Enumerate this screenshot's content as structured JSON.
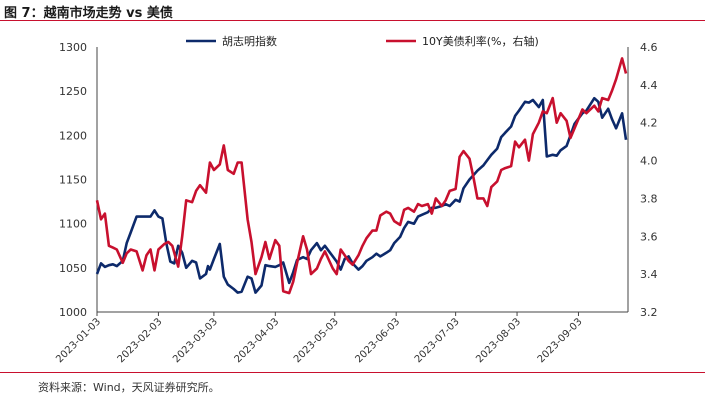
{
  "title": "图 7：越南市场走势 vs 美债",
  "source": "资料来源：Wind，天风证券研究所。",
  "colors": {
    "index": "#0d2a6b",
    "yield": "#c8102e",
    "accent": "#c8102e"
  },
  "chart_data": {
    "type": "line",
    "title": "",
    "xlabel": "",
    "ylabel": "",
    "y2label": "",
    "ylim": [
      1000,
      1300
    ],
    "y2lim": [
      3.2,
      4.6
    ],
    "y_ticks": [
      1000,
      1050,
      1100,
      1150,
      1200,
      1250,
      1300
    ],
    "y2_ticks": [
      "3.2",
      "3.4",
      "3.6",
      "3.8",
      "4.0",
      "4.2",
      "4.4",
      "4.6"
    ],
    "x_range": [
      "2023-01-03",
      "2023-09-28"
    ],
    "x_ticks": [
      "2023-01-03",
      "2023-02-03",
      "2023-03-03",
      "2023-04-03",
      "2023-05-03",
      "2023-06-03",
      "2023-07-03",
      "2023-08-03",
      "2023-09-03"
    ],
    "legend_position": "top",
    "grid": false,
    "series": [
      {
        "name": "胡志明指数",
        "axis": "left",
        "color": "#0d2a6b",
        "points": [
          [
            "2023-01-03",
            1043
          ],
          [
            "2023-01-05",
            1055
          ],
          [
            "2023-01-07",
            1051
          ],
          [
            "2023-01-09",
            1053
          ],
          [
            "2023-01-11",
            1054
          ],
          [
            "2023-01-13",
            1052
          ],
          [
            "2023-01-16",
            1058
          ],
          [
            "2023-01-18",
            1078
          ],
          [
            "2023-01-20",
            1090
          ],
          [
            "2023-01-23",
            1108
          ],
          [
            "2023-01-26",
            1108
          ],
          [
            "2023-01-30",
            1108
          ],
          [
            "2023-02-01",
            1115
          ],
          [
            "2023-02-03",
            1108
          ],
          [
            "2023-02-05",
            1106
          ],
          [
            "2023-02-07",
            1078
          ],
          [
            "2023-02-09",
            1057
          ],
          [
            "2023-02-11",
            1055
          ],
          [
            "2023-02-13",
            1075
          ],
          [
            "2023-02-15",
            1067
          ],
          [
            "2023-02-17",
            1050
          ],
          [
            "2023-02-20",
            1058
          ],
          [
            "2023-02-22",
            1056
          ],
          [
            "2023-02-24",
            1038
          ],
          [
            "2023-02-27",
            1043
          ],
          [
            "2023-02-28",
            1052
          ],
          [
            "2023-03-01",
            1048
          ],
          [
            "2023-03-03",
            1060
          ],
          [
            "2023-03-06",
            1077
          ],
          [
            "2023-03-08",
            1040
          ],
          [
            "2023-03-10",
            1031
          ],
          [
            "2023-03-13",
            1026
          ],
          [
            "2023-03-15",
            1022
          ],
          [
            "2023-03-17",
            1023
          ],
          [
            "2023-03-20",
            1040
          ],
          [
            "2023-03-22",
            1038
          ],
          [
            "2023-03-24",
            1022
          ],
          [
            "2023-03-27",
            1030
          ],
          [
            "2023-03-29",
            1053
          ],
          [
            "2023-03-31",
            1052
          ],
          [
            "2023-04-03",
            1051
          ],
          [
            "2023-04-05",
            1053
          ],
          [
            "2023-04-07",
            1056
          ],
          [
            "2023-04-10",
            1033
          ],
          [
            "2023-04-12",
            1045
          ],
          [
            "2023-04-14",
            1059
          ],
          [
            "2023-04-17",
            1062
          ],
          [
            "2023-04-19",
            1060
          ],
          [
            "2023-04-21",
            1070
          ],
          [
            "2023-04-24",
            1078
          ],
          [
            "2023-04-26",
            1070
          ],
          [
            "2023-04-28",
            1075
          ],
          [
            "2023-05-02",
            1063
          ],
          [
            "2023-05-04",
            1057
          ],
          [
            "2023-05-06",
            1048
          ],
          [
            "2023-05-08",
            1060
          ],
          [
            "2023-05-10",
            1063
          ],
          [
            "2023-05-12",
            1055
          ],
          [
            "2023-05-15",
            1048
          ],
          [
            "2023-05-17",
            1052
          ],
          [
            "2023-05-19",
            1058
          ],
          [
            "2023-05-22",
            1062
          ],
          [
            "2023-05-24",
            1066
          ],
          [
            "2023-05-26",
            1063
          ],
          [
            "2023-05-29",
            1067
          ],
          [
            "2023-05-31",
            1070
          ],
          [
            "2023-06-02",
            1078
          ],
          [
            "2023-06-05",
            1085
          ],
          [
            "2023-06-07",
            1095
          ],
          [
            "2023-06-09",
            1102
          ],
          [
            "2023-06-12",
            1100
          ],
          [
            "2023-06-14",
            1108
          ],
          [
            "2023-06-16",
            1110
          ],
          [
            "2023-06-19",
            1113
          ],
          [
            "2023-06-21",
            1118
          ],
          [
            "2023-06-23",
            1118
          ],
          [
            "2023-06-26",
            1120
          ],
          [
            "2023-06-28",
            1122
          ],
          [
            "2023-06-30",
            1120
          ],
          [
            "2023-07-03",
            1127
          ],
          [
            "2023-07-05",
            1125
          ],
          [
            "2023-07-07",
            1140
          ],
          [
            "2023-07-10",
            1150
          ],
          [
            "2023-07-12",
            1155
          ],
          [
            "2023-07-14",
            1160
          ],
          [
            "2023-07-17",
            1166
          ],
          [
            "2023-07-19",
            1172
          ],
          [
            "2023-07-21",
            1178
          ],
          [
            "2023-07-24",
            1185
          ],
          [
            "2023-07-26",
            1198
          ],
          [
            "2023-07-28",
            1203
          ],
          [
            "2023-07-31",
            1210
          ],
          [
            "2023-08-02",
            1222
          ],
          [
            "2023-08-04",
            1228
          ],
          [
            "2023-08-07",
            1238
          ],
          [
            "2023-08-09",
            1237
          ],
          [
            "2023-08-11",
            1240
          ],
          [
            "2023-08-14",
            1232
          ],
          [
            "2023-08-16",
            1240
          ],
          [
            "2023-08-18",
            1176
          ],
          [
            "2023-08-21",
            1178
          ],
          [
            "2023-08-23",
            1177
          ],
          [
            "2023-08-25",
            1183
          ],
          [
            "2023-08-28",
            1188
          ],
          [
            "2023-08-30",
            1200
          ],
          [
            "2023-09-01",
            1213
          ],
          [
            "2023-09-05",
            1225
          ],
          [
            "2023-09-07",
            1228
          ],
          [
            "2023-09-11",
            1242
          ],
          [
            "2023-09-13",
            1238
          ],
          [
            "2023-09-15",
            1220
          ],
          [
            "2023-09-18",
            1230
          ],
          [
            "2023-09-20",
            1218
          ],
          [
            "2023-09-22",
            1208
          ],
          [
            "2023-09-25",
            1225
          ],
          [
            "2023-09-27",
            1195
          ]
        ]
      },
      {
        "name": "10Y美债利率(%，右轴)",
        "axis": "right",
        "color": "#c8102e",
        "points": [
          [
            "2023-01-03",
            3.79
          ],
          [
            "2023-01-05",
            3.69
          ],
          [
            "2023-01-07",
            3.72
          ],
          [
            "2023-01-09",
            3.55
          ],
          [
            "2023-01-11",
            3.54
          ],
          [
            "2023-01-13",
            3.53
          ],
          [
            "2023-01-16",
            3.46
          ],
          [
            "2023-01-18",
            3.51
          ],
          [
            "2023-01-20",
            3.53
          ],
          [
            "2023-01-23",
            3.52
          ],
          [
            "2023-01-26",
            3.42
          ],
          [
            "2023-01-28",
            3.5
          ],
          [
            "2023-01-30",
            3.53
          ],
          [
            "2023-02-01",
            3.42
          ],
          [
            "2023-02-03",
            3.53
          ],
          [
            "2023-02-06",
            3.56
          ],
          [
            "2023-02-08",
            3.57
          ],
          [
            "2023-02-10",
            3.55
          ],
          [
            "2023-02-13",
            3.44
          ],
          [
            "2023-02-15",
            3.6
          ],
          [
            "2023-02-17",
            3.79
          ],
          [
            "2023-02-20",
            3.78
          ],
          [
            "2023-02-22",
            3.84
          ],
          [
            "2023-02-24",
            3.87
          ],
          [
            "2023-02-27",
            3.83
          ],
          [
            "2023-03-01",
            3.99
          ],
          [
            "2023-03-03",
            3.95
          ],
          [
            "2023-03-06",
            3.98
          ],
          [
            "2023-03-08",
            4.08
          ],
          [
            "2023-03-10",
            3.95
          ],
          [
            "2023-03-13",
            3.93
          ],
          [
            "2023-03-15",
            3.99
          ],
          [
            "2023-03-17",
            3.99
          ],
          [
            "2023-03-20",
            3.69
          ],
          [
            "2023-03-22",
            3.57
          ],
          [
            "2023-03-24",
            3.4
          ],
          [
            "2023-03-27",
            3.49
          ],
          [
            "2023-03-29",
            3.57
          ],
          [
            "2023-03-31",
            3.48
          ],
          [
            "2023-04-03",
            3.58
          ],
          [
            "2023-04-05",
            3.55
          ],
          [
            "2023-04-07",
            3.31
          ],
          [
            "2023-04-10",
            3.3
          ],
          [
            "2023-04-12",
            3.36
          ],
          [
            "2023-04-14",
            3.46
          ],
          [
            "2023-04-17",
            3.6
          ],
          [
            "2023-04-19",
            3.53
          ],
          [
            "2023-04-21",
            3.4
          ],
          [
            "2023-04-24",
            3.43
          ],
          [
            "2023-04-26",
            3.48
          ],
          [
            "2023-04-28",
            3.52
          ],
          [
            "2023-05-02",
            3.43
          ],
          [
            "2023-05-04",
            3.4
          ],
          [
            "2023-05-06",
            3.53
          ],
          [
            "2023-05-08",
            3.5
          ],
          [
            "2023-05-10",
            3.47
          ],
          [
            "2023-05-12",
            3.45
          ],
          [
            "2023-05-15",
            3.5
          ],
          [
            "2023-05-17",
            3.55
          ],
          [
            "2023-05-19",
            3.59
          ],
          [
            "2023-05-22",
            3.63
          ],
          [
            "2023-05-24",
            3.63
          ],
          [
            "2023-05-26",
            3.71
          ],
          [
            "2023-05-29",
            3.73
          ],
          [
            "2023-05-31",
            3.72
          ],
          [
            "2023-06-02",
            3.68
          ],
          [
            "2023-06-05",
            3.66
          ],
          [
            "2023-06-07",
            3.74
          ],
          [
            "2023-06-09",
            3.75
          ],
          [
            "2023-06-12",
            3.73
          ],
          [
            "2023-06-14",
            3.77
          ],
          [
            "2023-06-16",
            3.76
          ],
          [
            "2023-06-19",
            3.77
          ],
          [
            "2023-06-21",
            3.72
          ],
          [
            "2023-06-23",
            3.8
          ],
          [
            "2023-06-26",
            3.76
          ],
          [
            "2023-06-28",
            3.79
          ],
          [
            "2023-06-30",
            3.84
          ],
          [
            "2023-07-03",
            3.85
          ],
          [
            "2023-07-05",
            4.02
          ],
          [
            "2023-07-07",
            4.05
          ],
          [
            "2023-07-10",
            4.01
          ],
          [
            "2023-07-12",
            3.91
          ],
          [
            "2023-07-14",
            3.8
          ],
          [
            "2023-07-17",
            3.8
          ],
          [
            "2023-07-19",
            3.76
          ],
          [
            "2023-07-21",
            3.86
          ],
          [
            "2023-07-24",
            3.89
          ],
          [
            "2023-07-26",
            3.95
          ],
          [
            "2023-07-28",
            3.96
          ],
          [
            "2023-07-31",
            3.97
          ],
          [
            "2023-08-02",
            4.1
          ],
          [
            "2023-08-04",
            4.07
          ],
          [
            "2023-08-07",
            4.11
          ],
          [
            "2023-08-09",
            4.0
          ],
          [
            "2023-08-11",
            4.14
          ],
          [
            "2023-08-14",
            4.2
          ],
          [
            "2023-08-16",
            4.26
          ],
          [
            "2023-08-18",
            4.25
          ],
          [
            "2023-08-21",
            4.33
          ],
          [
            "2023-08-23",
            4.2
          ],
          [
            "2023-08-25",
            4.25
          ],
          [
            "2023-08-28",
            4.21
          ],
          [
            "2023-08-30",
            4.12
          ],
          [
            "2023-09-01",
            4.17
          ],
          [
            "2023-09-05",
            4.27
          ],
          [
            "2023-09-07",
            4.25
          ],
          [
            "2023-09-11",
            4.29
          ],
          [
            "2023-09-13",
            4.26
          ],
          [
            "2023-09-15",
            4.33
          ],
          [
            "2023-09-18",
            4.32
          ],
          [
            "2023-09-20",
            4.37
          ],
          [
            "2023-09-22",
            4.43
          ],
          [
            "2023-09-25",
            4.54
          ],
          [
            "2023-09-27",
            4.46
          ]
        ]
      }
    ]
  }
}
